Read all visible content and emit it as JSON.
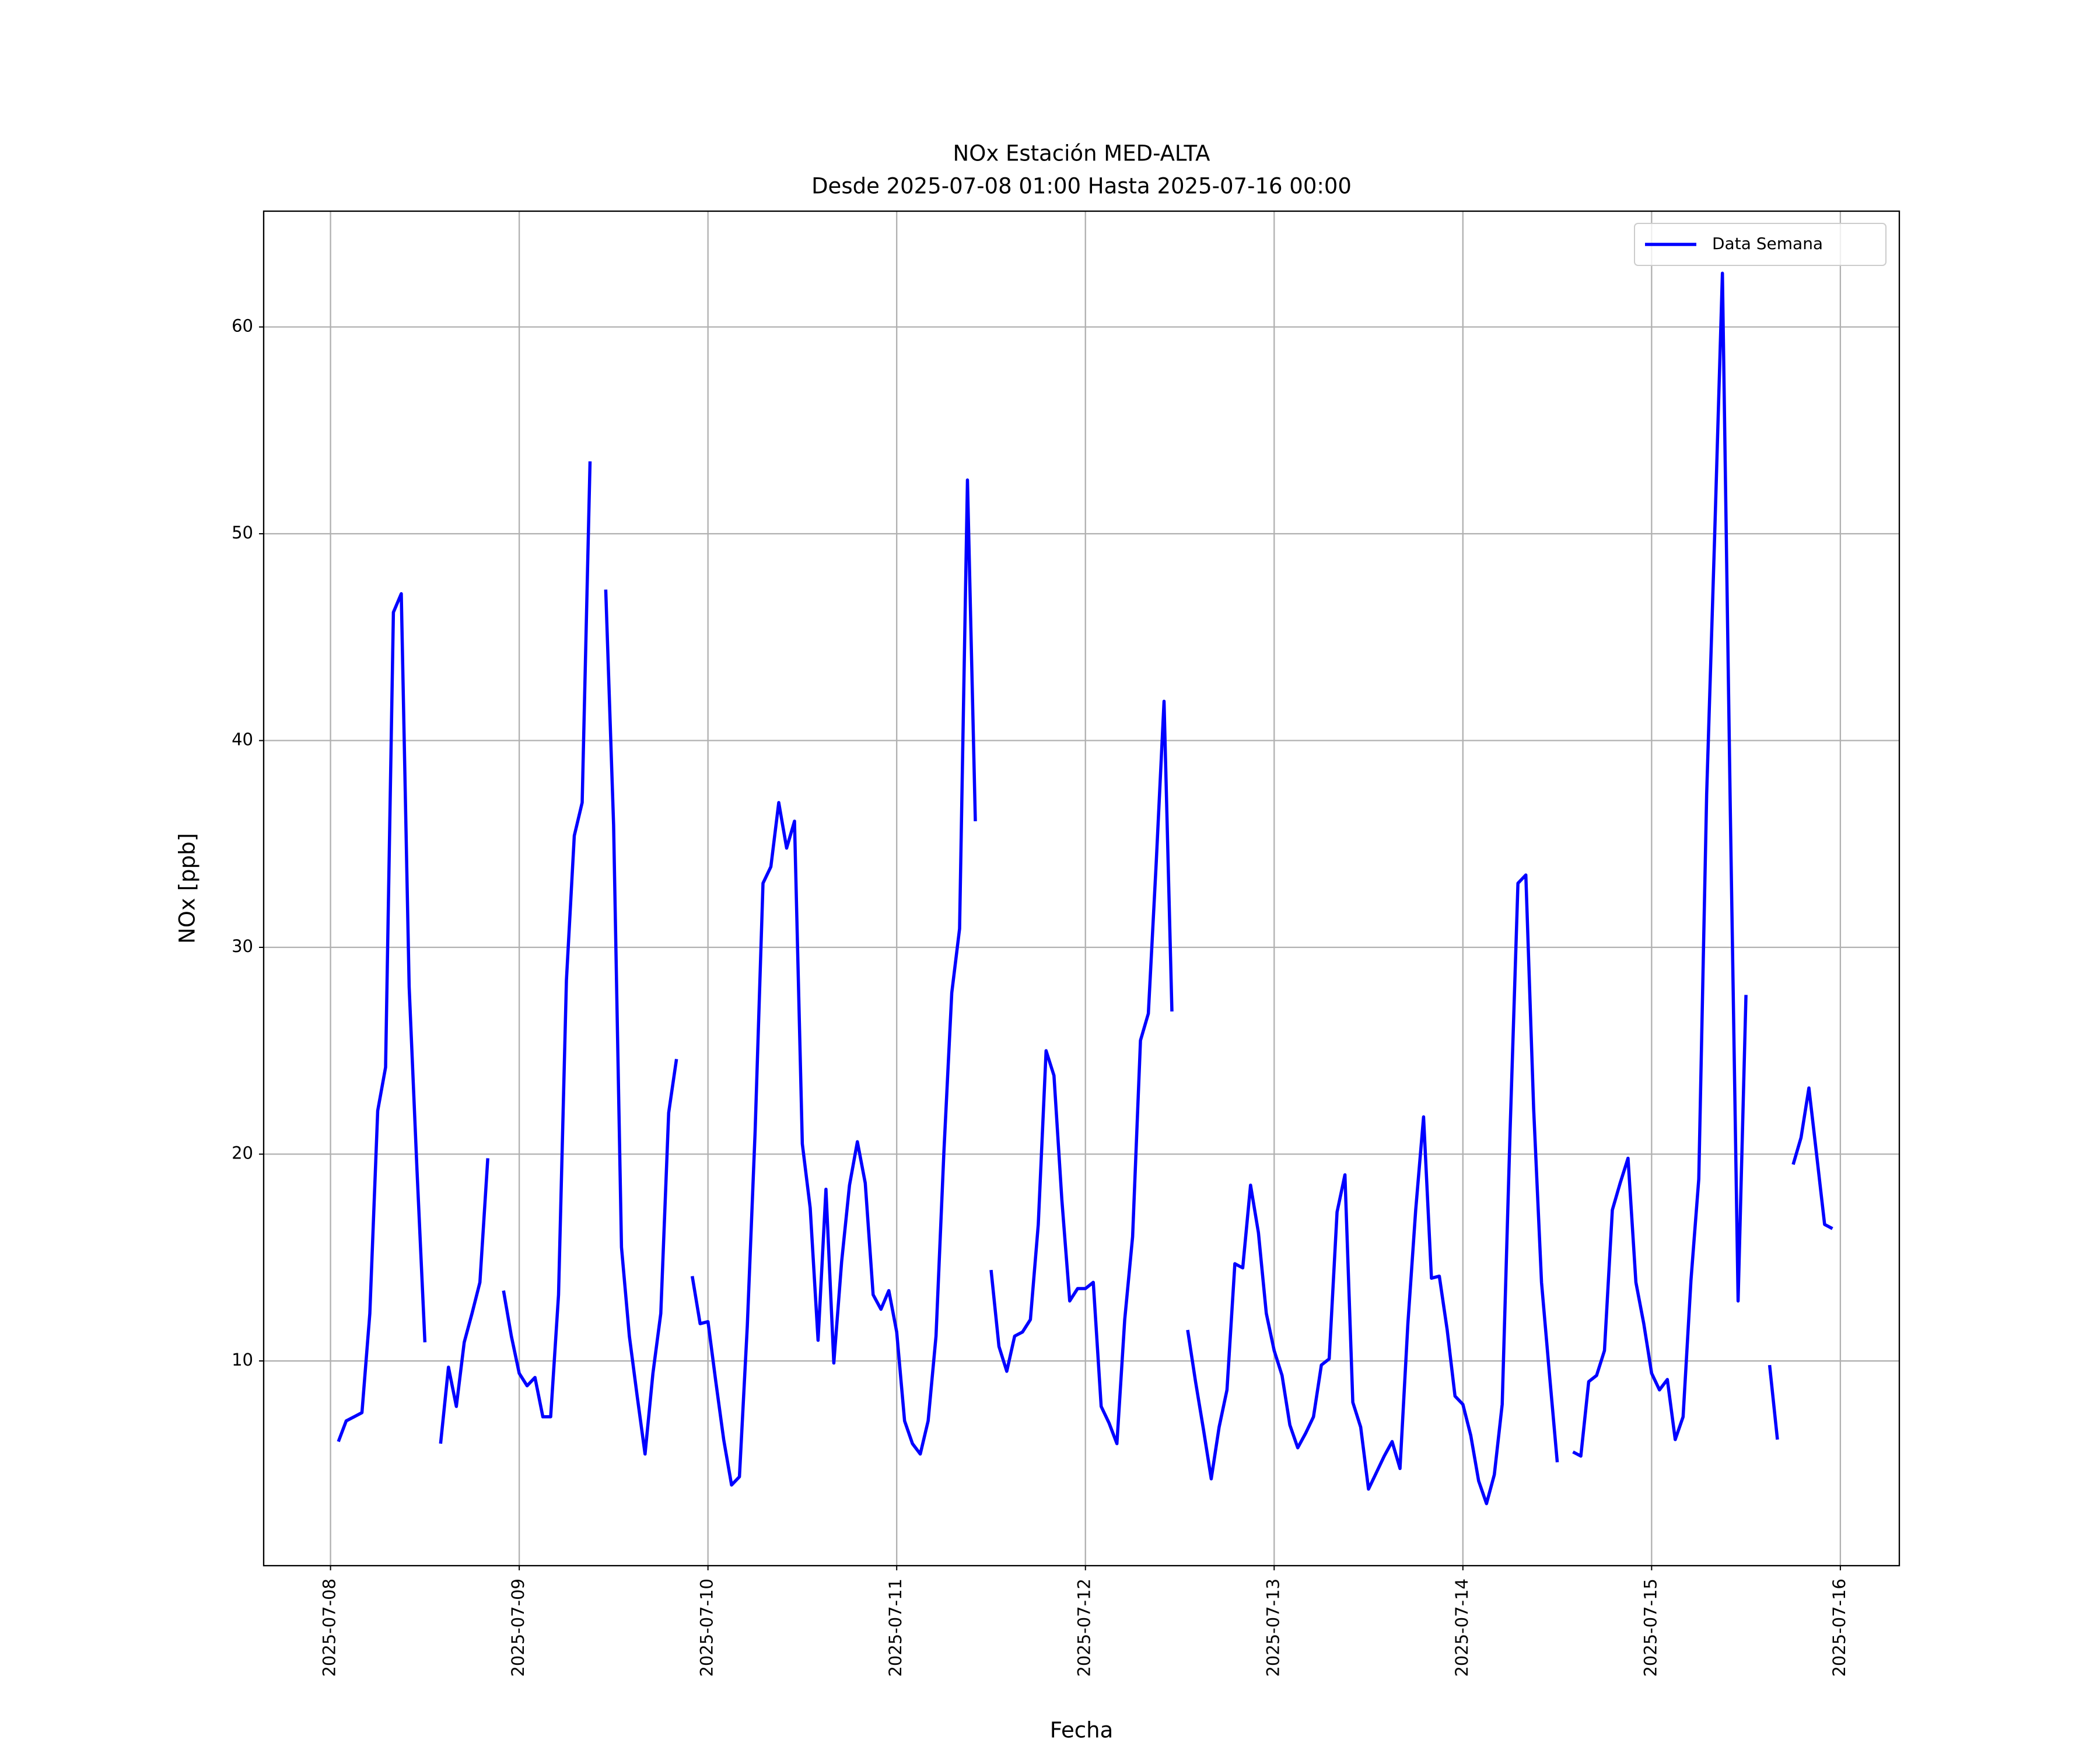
{
  "chart_data": {
    "type": "line",
    "title": "NOx Estación MED-ALTA",
    "subtitle": "Desde 2025-07-08 01:00 Hasta 2025-07-16 00:00",
    "x_label": "Fecha",
    "y_label": "NOx [ppb]",
    "x": [
      "2025-07-08 01:00",
      "2025-07-08 02:00",
      "2025-07-08 03:00",
      "2025-07-08 04:00",
      "2025-07-08 05:00",
      "2025-07-08 06:00",
      "2025-07-08 07:00",
      "2025-07-08 08:00",
      "2025-07-08 09:00",
      "2025-07-08 10:00",
      "2025-07-08 11:00",
      "2025-07-08 12:00",
      "2025-07-08 13:00",
      "2025-07-08 14:00",
      "2025-07-08 15:00",
      "2025-07-08 16:00",
      "2025-07-08 17:00",
      "2025-07-08 18:00",
      "2025-07-08 19:00",
      "2025-07-08 20:00",
      "2025-07-08 21:00",
      "2025-07-08 22:00",
      "2025-07-08 23:00",
      "2025-07-09 00:00",
      "2025-07-09 01:00",
      "2025-07-09 02:00",
      "2025-07-09 03:00",
      "2025-07-09 04:00",
      "2025-07-09 05:00",
      "2025-07-09 06:00",
      "2025-07-09 07:00",
      "2025-07-09 08:00",
      "2025-07-09 09:00",
      "2025-07-09 10:00",
      "2025-07-09 11:00",
      "2025-07-09 12:00",
      "2025-07-09 13:00",
      "2025-07-09 14:00",
      "2025-07-09 15:00",
      "2025-07-09 16:00",
      "2025-07-09 17:00",
      "2025-07-09 18:00",
      "2025-07-09 19:00",
      "2025-07-09 20:00",
      "2025-07-09 21:00",
      "2025-07-09 22:00",
      "2025-07-09 23:00",
      "2025-07-10 00:00",
      "2025-07-10 01:00",
      "2025-07-10 02:00",
      "2025-07-10 03:00",
      "2025-07-10 04:00",
      "2025-07-10 05:00",
      "2025-07-10 06:00",
      "2025-07-10 07:00",
      "2025-07-10 08:00",
      "2025-07-10 09:00",
      "2025-07-10 10:00",
      "2025-07-10 11:00",
      "2025-07-10 12:00",
      "2025-07-10 13:00",
      "2025-07-10 14:00",
      "2025-07-10 15:00",
      "2025-07-10 16:00",
      "2025-07-10 17:00",
      "2025-07-10 18:00",
      "2025-07-10 19:00",
      "2025-07-10 20:00",
      "2025-07-10 21:00",
      "2025-07-10 22:00",
      "2025-07-10 23:00",
      "2025-07-11 00:00",
      "2025-07-11 01:00",
      "2025-07-11 02:00",
      "2025-07-11 03:00",
      "2025-07-11 04:00",
      "2025-07-11 05:00",
      "2025-07-11 06:00",
      "2025-07-11 07:00",
      "2025-07-11 08:00",
      "2025-07-11 09:00",
      "2025-07-11 10:00",
      "2025-07-11 11:00",
      "2025-07-11 12:00",
      "2025-07-11 13:00",
      "2025-07-11 14:00",
      "2025-07-11 15:00",
      "2025-07-11 16:00",
      "2025-07-11 17:00",
      "2025-07-11 18:00",
      "2025-07-11 19:00",
      "2025-07-11 20:00",
      "2025-07-11 21:00",
      "2025-07-11 22:00",
      "2025-07-11 23:00",
      "2025-07-12 00:00",
      "2025-07-12 01:00",
      "2025-07-12 02:00",
      "2025-07-12 03:00",
      "2025-07-12 04:00",
      "2025-07-12 05:00",
      "2025-07-12 06:00",
      "2025-07-12 07:00",
      "2025-07-12 08:00",
      "2025-07-12 09:00",
      "2025-07-12 10:00",
      "2025-07-12 11:00",
      "2025-07-12 12:00",
      "2025-07-12 13:00",
      "2025-07-12 14:00",
      "2025-07-12 15:00",
      "2025-07-12 16:00",
      "2025-07-12 17:00",
      "2025-07-12 18:00",
      "2025-07-12 19:00",
      "2025-07-12 20:00",
      "2025-07-12 21:00",
      "2025-07-12 22:00",
      "2025-07-12 23:00",
      "2025-07-13 00:00",
      "2025-07-13 01:00",
      "2025-07-13 02:00",
      "2025-07-13 03:00",
      "2025-07-13 04:00",
      "2025-07-13 05:00",
      "2025-07-13 06:00",
      "2025-07-13 07:00",
      "2025-07-13 08:00",
      "2025-07-13 09:00",
      "2025-07-13 10:00",
      "2025-07-13 11:00",
      "2025-07-13 12:00",
      "2025-07-13 13:00",
      "2025-07-13 14:00",
      "2025-07-13 15:00",
      "2025-07-13 16:00",
      "2025-07-13 17:00",
      "2025-07-13 18:00",
      "2025-07-13 19:00",
      "2025-07-13 20:00",
      "2025-07-13 21:00",
      "2025-07-13 22:00",
      "2025-07-13 23:00",
      "2025-07-14 00:00",
      "2025-07-14 01:00",
      "2025-07-14 02:00",
      "2025-07-14 03:00",
      "2025-07-14 04:00",
      "2025-07-14 05:00",
      "2025-07-14 06:00",
      "2025-07-14 07:00",
      "2025-07-14 08:00",
      "2025-07-14 09:00",
      "2025-07-14 10:00",
      "2025-07-14 11:00",
      "2025-07-14 12:00",
      "2025-07-14 13:00",
      "2025-07-14 14:00",
      "2025-07-14 15:00",
      "2025-07-14 16:00",
      "2025-07-14 17:00",
      "2025-07-14 18:00",
      "2025-07-14 19:00",
      "2025-07-14 20:00",
      "2025-07-14 21:00",
      "2025-07-14 22:00",
      "2025-07-14 23:00",
      "2025-07-15 00:00",
      "2025-07-15 01:00",
      "2025-07-15 02:00",
      "2025-07-15 03:00",
      "2025-07-15 04:00",
      "2025-07-15 05:00",
      "2025-07-15 06:00",
      "2025-07-15 07:00",
      "2025-07-15 08:00",
      "2025-07-15 09:00",
      "2025-07-15 10:00",
      "2025-07-15 11:00",
      "2025-07-15 12:00",
      "2025-07-15 13:00",
      "2025-07-15 14:00",
      "2025-07-15 15:00",
      "2025-07-15 16:00",
      "2025-07-15 17:00",
      "2025-07-15 18:00",
      "2025-07-15 19:00",
      "2025-07-15 20:00",
      "2025-07-15 21:00",
      "2025-07-15 22:00",
      "2025-07-15 23:00",
      "2025-07-16 00:00"
    ],
    "series": [
      {
        "name": "Data Semana",
        "color": "#0000ff",
        "values": [
          6.1,
          7.1,
          7.3,
          7.5,
          12.3,
          22.1,
          24.2,
          46.2,
          47.1,
          28.1,
          19.2,
          10.9,
          null,
          6.0,
          9.7,
          7.8,
          10.9,
          12.3,
          13.8,
          19.8,
          null,
          13.4,
          11.2,
          9.4,
          8.8,
          9.2,
          7.3,
          7.3,
          13.2,
          28.4,
          35.4,
          37.0,
          53.5,
          null,
          47.3,
          35.9,
          15.5,
          11.2,
          8.3,
          5.5,
          9.4,
          12.3,
          22.0,
          24.6,
          null,
          14.1,
          11.8,
          11.9,
          9.0,
          6.2,
          4.0,
          4.4,
          11.7,
          21.1,
          33.1,
          33.9,
          37.0,
          34.8,
          36.1,
          20.5,
          17.4,
          11.0,
          18.3,
          9.9,
          14.8,
          18.5,
          20.6,
          18.6,
          13.2,
          12.5,
          13.4,
          11.4,
          7.1,
          6.0,
          5.5,
          7.1,
          11.2,
          20.1,
          27.8,
          30.9,
          52.6,
          36.1,
          null,
          14.4,
          10.7,
          9.5,
          11.2,
          11.4,
          12.0,
          16.6,
          25.0,
          23.8,
          17.8,
          12.9,
          13.5,
          13.5,
          13.8,
          7.8,
          7.0,
          6.0,
          12.0,
          16.0,
          25.5,
          26.8,
          34.1,
          41.9,
          26.9,
          null,
          11.5,
          9.0,
          6.7,
          4.3,
          6.8,
          8.6,
          14.7,
          14.5,
          18.5,
          16.2,
          12.3,
          10.5,
          9.3,
          6.9,
          5.8,
          6.5,
          7.3,
          9.8,
          10.1,
          17.2,
          19.0,
          8.0,
          6.8,
          3.8,
          4.6,
          5.4,
          6.1,
          4.8,
          11.8,
          17.3,
          21.8,
          14.0,
          14.1,
          11.5,
          8.3,
          7.9,
          6.4,
          4.2,
          3.1,
          4.5,
          7.9,
          21.1,
          33.1,
          33.5,
          22.2,
          13.8,
          9.4,
          5.1,
          null,
          5.6,
          5.4,
          9.0,
          9.3,
          10.5,
          17.3,
          18.6,
          19.8,
          13.8,
          11.8,
          9.4,
          8.6,
          9.1,
          6.2,
          7.3,
          13.9,
          18.8,
          37.4,
          49.7,
          62.6,
          36.7,
          12.9,
          27.7,
          null,
          null,
          9.8,
          6.2,
          null,
          19.5,
          20.8,
          23.2,
          19.9,
          16.6,
          16.4,
          null
        ]
      }
    ],
    "xlim": [
      "2025-07-07 15:30",
      "2025-07-16 07:30"
    ],
    "xticks": [
      "2025-07-08",
      "2025-07-09",
      "2025-07-10",
      "2025-07-11",
      "2025-07-12",
      "2025-07-13",
      "2025-07-14",
      "2025-07-15",
      "2025-07-16"
    ],
    "ylim": [
      0.1,
      65.6
    ],
    "yticks": [
      10,
      20,
      30,
      40,
      50,
      60
    ],
    "grid": true,
    "legend": "upper right"
  }
}
